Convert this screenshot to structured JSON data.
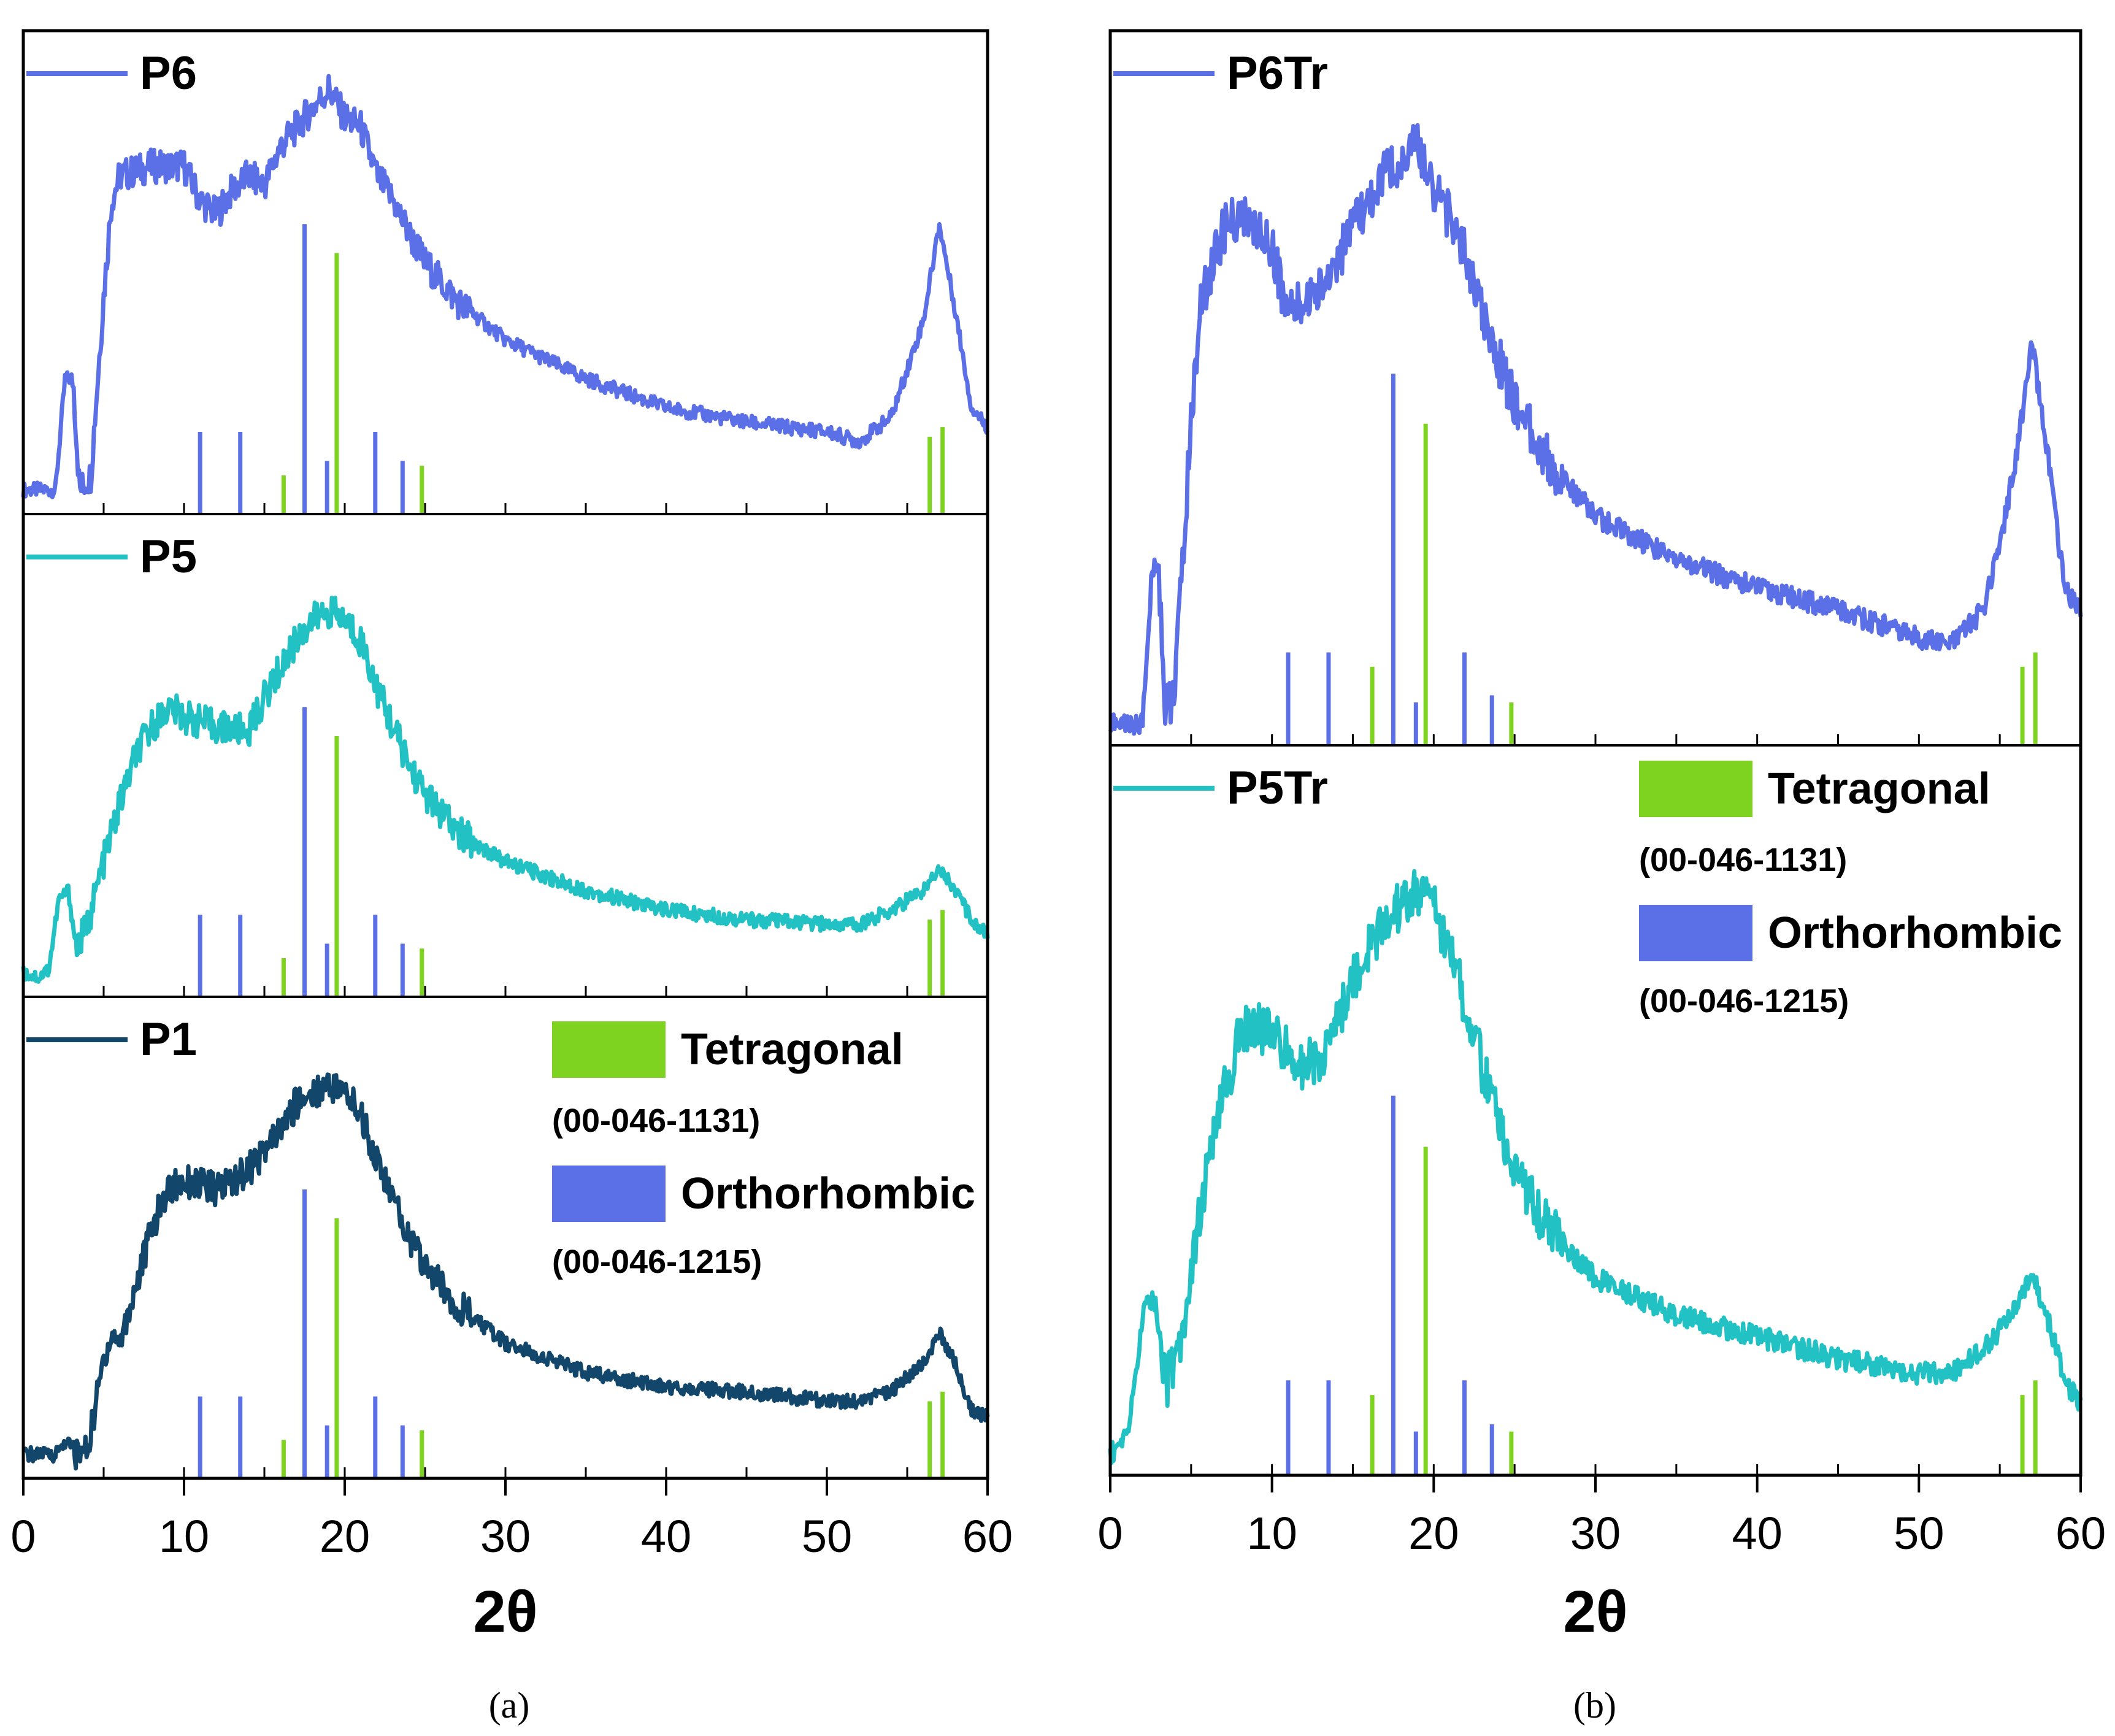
{
  "figure": {
    "caption_a": "(a)",
    "caption_b": "(b)",
    "xlabel": "2θ"
  },
  "colors": {
    "P6": "#5B6FE6",
    "P5": "#22C2C4",
    "P1": "#12476B",
    "tetragonal": "#7ED321",
    "orthorhombic": "#5B6FE6"
  },
  "legend": {
    "tetragonal_label": "Tetragonal",
    "tetragonal_code": "(00-046-1131)",
    "orthorhombic_label": "Orthorhombic",
    "orthorhombic_code": "(00-046-1215)"
  },
  "chart_data": [
    {
      "type": "line",
      "panel": "a",
      "xlim": [
        0,
        60
      ],
      "xticks": [
        0,
        10,
        20,
        30,
        40,
        50,
        60
      ],
      "xlabel": "2θ",
      "subplots": [
        {
          "name": "P6",
          "color_key": "P6",
          "points": [
            [
              0,
              0.05
            ],
            [
              2,
              0.05
            ],
            [
              2.6,
              0.28
            ],
            [
              3.1,
              0.28
            ],
            [
              3.5,
              0.05
            ],
            [
              4.2,
              0.08
            ],
            [
              5,
              0.45
            ],
            [
              5.5,
              0.65
            ],
            [
              6,
              0.7
            ],
            [
              8,
              0.72
            ],
            [
              10,
              0.72
            ],
            [
              11,
              0.65
            ],
            [
              12,
              0.62
            ],
            [
              13,
              0.67
            ],
            [
              14,
              0.7
            ],
            [
              15,
              0.68
            ],
            [
              16,
              0.76
            ],
            [
              17,
              0.8
            ],
            [
              18,
              0.84
            ],
            [
              19,
              0.88
            ],
            [
              20,
              0.82
            ],
            [
              21,
              0.8
            ],
            [
              22,
              0.7
            ],
            [
              23,
              0.65
            ],
            [
              24,
              0.58
            ],
            [
              25,
              0.52
            ],
            [
              27,
              0.44
            ],
            [
              30,
              0.36
            ],
            [
              35,
              0.28
            ],
            [
              40,
              0.22
            ],
            [
              45,
              0.19
            ],
            [
              50,
              0.17
            ],
            [
              52,
              0.15
            ],
            [
              54,
              0.2
            ],
            [
              56,
              0.4
            ],
            [
              57,
              0.6
            ],
            [
              58,
              0.42
            ],
            [
              59,
              0.22
            ],
            [
              60,
              0.18
            ]
          ],
          "sticks_tetragonal": [
            [
              16.2,
              0.08
            ],
            [
              19.5,
              0.54
            ],
            [
              24.8,
              0.1
            ],
            [
              56.4,
              0.16
            ],
            [
              57.2,
              0.18
            ]
          ],
          "sticks_orthorhombic": [
            [
              11,
              0.17
            ],
            [
              13.5,
              0.17
            ],
            [
              17.5,
              0.6
            ],
            [
              18.9,
              0.11
            ],
            [
              21.9,
              0.17
            ],
            [
              23.6,
              0.11
            ]
          ]
        },
        {
          "name": "P5",
          "color_key": "P5",
          "points": [
            [
              0,
              0.05
            ],
            [
              1,
              0.04
            ],
            [
              1.6,
              0.06
            ],
            [
              2.2,
              0.2
            ],
            [
              2.8,
              0.22
            ],
            [
              3.3,
              0.1
            ],
            [
              4,
              0.15
            ],
            [
              5,
              0.28
            ],
            [
              6,
              0.4
            ],
            [
              7,
              0.5
            ],
            [
              8,
              0.56
            ],
            [
              9,
              0.6
            ],
            [
              10,
              0.58
            ],
            [
              12,
              0.56
            ],
            [
              14,
              0.55
            ],
            [
              15,
              0.62
            ],
            [
              16,
              0.68
            ],
            [
              17,
              0.74
            ],
            [
              18,
              0.78
            ],
            [
              19,
              0.8
            ],
            [
              20,
              0.78
            ],
            [
              21,
              0.74
            ],
            [
              22,
              0.64
            ],
            [
              23,
              0.56
            ],
            [
              24,
              0.48
            ],
            [
              25,
              0.42
            ],
            [
              27,
              0.34
            ],
            [
              30,
              0.28
            ],
            [
              35,
              0.22
            ],
            [
              40,
              0.18
            ],
            [
              45,
              0.16
            ],
            [
              50,
              0.15
            ],
            [
              52,
              0.15
            ],
            [
              54,
              0.18
            ],
            [
              56,
              0.22
            ],
            [
              57,
              0.27
            ],
            [
              58,
              0.22
            ],
            [
              59,
              0.16
            ],
            [
              60,
              0.13
            ]
          ],
          "sticks_tetragonal": [
            [
              16.2,
              0.08
            ],
            [
              19.5,
              0.54
            ],
            [
              24.8,
              0.1
            ],
            [
              56.4,
              0.16
            ],
            [
              57.2,
              0.18
            ]
          ],
          "sticks_orthorhombic": [
            [
              11,
              0.17
            ],
            [
              13.5,
              0.17
            ],
            [
              17.5,
              0.6
            ],
            [
              18.9,
              0.11
            ],
            [
              21.9,
              0.17
            ],
            [
              23.6,
              0.11
            ]
          ]
        },
        {
          "name": "P1",
          "color_key": "P1",
          "points": [
            [
              0,
              0.05
            ],
            [
              2,
              0.05
            ],
            [
              2.7,
              0.08
            ],
            [
              3.2,
              0.05
            ],
            [
              4,
              0.06
            ],
            [
              4.5,
              0.15
            ],
            [
              5,
              0.25
            ],
            [
              5.5,
              0.3
            ],
            [
              6,
              0.28
            ],
            [
              7,
              0.4
            ],
            [
              8,
              0.52
            ],
            [
              9,
              0.6
            ],
            [
              10,
              0.62
            ],
            [
              12,
              0.6
            ],
            [
              14,
              0.64
            ],
            [
              16,
              0.72
            ],
            [
              17,
              0.78
            ],
            [
              18,
              0.8
            ],
            [
              19,
              0.82
            ],
            [
              20,
              0.8
            ],
            [
              21,
              0.76
            ],
            [
              22,
              0.66
            ],
            [
              23,
              0.58
            ],
            [
              24,
              0.5
            ],
            [
              25,
              0.44
            ],
            [
              27,
              0.36
            ],
            [
              30,
              0.28
            ],
            [
              35,
              0.22
            ],
            [
              40,
              0.19
            ],
            [
              45,
              0.18
            ],
            [
              50,
              0.16
            ],
            [
              52,
              0.16
            ],
            [
              54,
              0.18
            ],
            [
              56,
              0.24
            ],
            [
              57,
              0.3
            ],
            [
              58,
              0.24
            ],
            [
              59,
              0.14
            ],
            [
              60,
              0.13
            ]
          ],
          "sticks_tetragonal": [
            [
              16.2,
              0.08
            ],
            [
              19.5,
              0.54
            ],
            [
              24.8,
              0.1
            ],
            [
              56.4,
              0.16
            ],
            [
              57.2,
              0.18
            ]
          ],
          "sticks_orthorhombic": [
            [
              11,
              0.17
            ],
            [
              13.5,
              0.17
            ],
            [
              17.5,
              0.6
            ],
            [
              18.9,
              0.11
            ],
            [
              21.9,
              0.17
            ],
            [
              23.6,
              0.11
            ]
          ]
        }
      ]
    },
    {
      "type": "line",
      "panel": "b",
      "xlim": [
        0,
        60
      ],
      "xticks": [
        0,
        10,
        20,
        30,
        40,
        50,
        60
      ],
      "xlabel": "2θ",
      "subplots": [
        {
          "name": "P6Tr",
          "color_key": "P6",
          "points": [
            [
              0,
              0.03
            ],
            [
              2,
              0.03
            ],
            [
              2.6,
              0.25
            ],
            [
              3,
              0.25
            ],
            [
              3.4,
              0.05
            ],
            [
              4,
              0.08
            ],
            [
              5,
              0.45
            ],
            [
              5.5,
              0.6
            ],
            [
              6,
              0.65
            ],
            [
              7,
              0.72
            ],
            [
              8,
              0.74
            ],
            [
              9,
              0.72
            ],
            [
              10,
              0.7
            ],
            [
              11,
              0.6
            ],
            [
              12,
              0.62
            ],
            [
              13,
              0.64
            ],
            [
              14,
              0.68
            ],
            [
              15,
              0.72
            ],
            [
              16,
              0.76
            ],
            [
              17,
              0.8
            ],
            [
              18,
              0.82
            ],
            [
              19,
              0.84
            ],
            [
              20,
              0.78
            ],
            [
              21,
              0.74
            ],
            [
              22,
              0.68
            ],
            [
              23,
              0.6
            ],
            [
              24,
              0.54
            ],
            [
              25,
              0.48
            ],
            [
              27,
              0.4
            ],
            [
              30,
              0.32
            ],
            [
              35,
              0.26
            ],
            [
              40,
              0.22
            ],
            [
              45,
              0.19
            ],
            [
              50,
              0.15
            ],
            [
              52,
              0.14
            ],
            [
              54,
              0.19
            ],
            [
              55,
              0.28
            ],
            [
              56,
              0.4
            ],
            [
              57,
              0.56
            ],
            [
              58,
              0.4
            ],
            [
              59,
              0.22
            ],
            [
              60,
              0.19
            ]
          ],
          "sticks_tetragonal": [
            [
              16.2,
              0.11
            ],
            [
              19.5,
              0.45
            ],
            [
              24.8,
              0.06
            ],
            [
              56.4,
              0.11
            ],
            [
              57.2,
              0.13
            ]
          ],
          "sticks_orthorhombic": [
            [
              11,
              0.13
            ],
            [
              13.5,
              0.13
            ],
            [
              17.5,
              0.52
            ],
            [
              18.9,
              0.06
            ],
            [
              21.9,
              0.13
            ],
            [
              23.6,
              0.07
            ]
          ]
        },
        {
          "name": "P5Tr",
          "color_key": "P5",
          "points": [
            [
              0,
              0.03
            ],
            [
              1,
              0.05
            ],
            [
              2.2,
              0.24
            ],
            [
              2.8,
              0.24
            ],
            [
              3.4,
              0.12
            ],
            [
              4.3,
              0.18
            ],
            [
              5,
              0.28
            ],
            [
              6,
              0.42
            ],
            [
              7,
              0.52
            ],
            [
              8,
              0.6
            ],
            [
              9,
              0.62
            ],
            [
              10,
              0.6
            ],
            [
              11,
              0.58
            ],
            [
              12,
              0.56
            ],
            [
              13,
              0.57
            ],
            [
              14,
              0.62
            ],
            [
              15,
              0.68
            ],
            [
              16,
              0.72
            ],
            [
              17,
              0.76
            ],
            [
              18,
              0.78
            ],
            [
              19,
              0.8
            ],
            [
              20,
              0.78
            ],
            [
              21,
              0.72
            ],
            [
              22,
              0.64
            ],
            [
              23,
              0.56
            ],
            [
              24,
              0.48
            ],
            [
              25,
              0.42
            ],
            [
              27,
              0.34
            ],
            [
              30,
              0.27
            ],
            [
              35,
              0.22
            ],
            [
              40,
              0.19
            ],
            [
              45,
              0.16
            ],
            [
              50,
              0.14
            ],
            [
              52,
              0.14
            ],
            [
              54,
              0.17
            ],
            [
              56,
              0.23
            ],
            [
              57,
              0.28
            ],
            [
              58,
              0.21
            ],
            [
              59,
              0.13
            ],
            [
              60,
              0.1
            ]
          ],
          "sticks_tetragonal": [
            [
              16.2,
              0.11
            ],
            [
              19.5,
              0.45
            ],
            [
              24.8,
              0.06
            ],
            [
              56.4,
              0.11
            ],
            [
              57.2,
              0.13
            ]
          ],
          "sticks_orthorhombic": [
            [
              11,
              0.13
            ],
            [
              13.5,
              0.13
            ],
            [
              17.5,
              0.52
            ],
            [
              18.9,
              0.06
            ],
            [
              21.9,
              0.13
            ],
            [
              23.6,
              0.07
            ]
          ]
        }
      ]
    }
  ]
}
